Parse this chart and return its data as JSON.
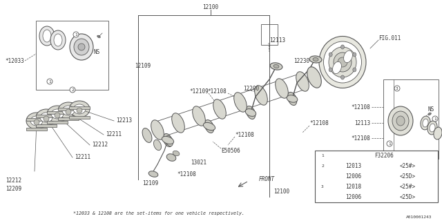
{
  "bg_color": "#ffffff",
  "line_color": "#555555",
  "text_color": "#333333",
  "diagram_id": "A010001243",
  "fig_ref": "FIG.011",
  "footnote": "*12033 & 12108 are the set-items for one vehicle respectively.",
  "table": {
    "row1": [
      "",
      "F32206"
    ],
    "row2": [
      "12013",
      "<25#>"
    ],
    "row3": [
      "12006",
      "<25D>"
    ],
    "row4": [
      "12018",
      "<25#>"
    ],
    "row5": [
      "12006",
      "<25D>"
    ]
  }
}
